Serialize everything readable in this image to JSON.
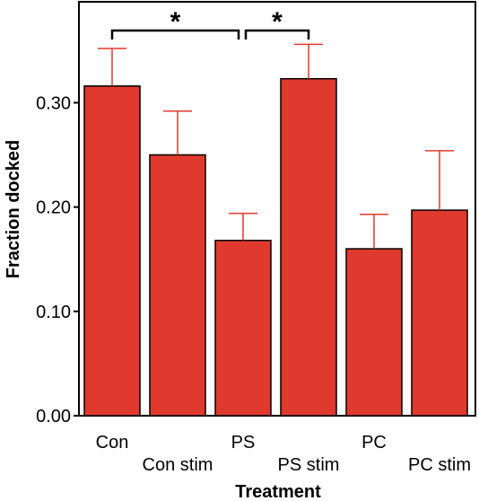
{
  "chart_data": {
    "type": "bar",
    "categories": [
      "Con",
      "Con stim",
      "PS",
      "PS stim",
      "PC",
      "PC stim"
    ],
    "values": [
      0.316,
      0.25,
      0.168,
      0.323,
      0.16,
      0.197
    ],
    "error_upper": [
      0.352,
      0.292,
      0.194,
      0.356,
      0.193,
      0.254
    ],
    "xlabel": "Treatment",
    "ylabel": "Fraction docked",
    "ylim": [
      0,
      0.4
    ],
    "yticks": [
      "0.00",
      "0.10",
      "0.20",
      "0.30"
    ],
    "ytick_values": [
      0,
      0.1,
      0.2,
      0.3
    ],
    "grid": false,
    "colors": {
      "bar": "#e03a2e",
      "error": "#e03a2e",
      "outline": "#000000"
    },
    "significance": [
      {
        "from": "Con",
        "to": "PS",
        "label": "*"
      },
      {
        "from": "PS",
        "to": "PS stim",
        "label": "*"
      }
    ]
  }
}
